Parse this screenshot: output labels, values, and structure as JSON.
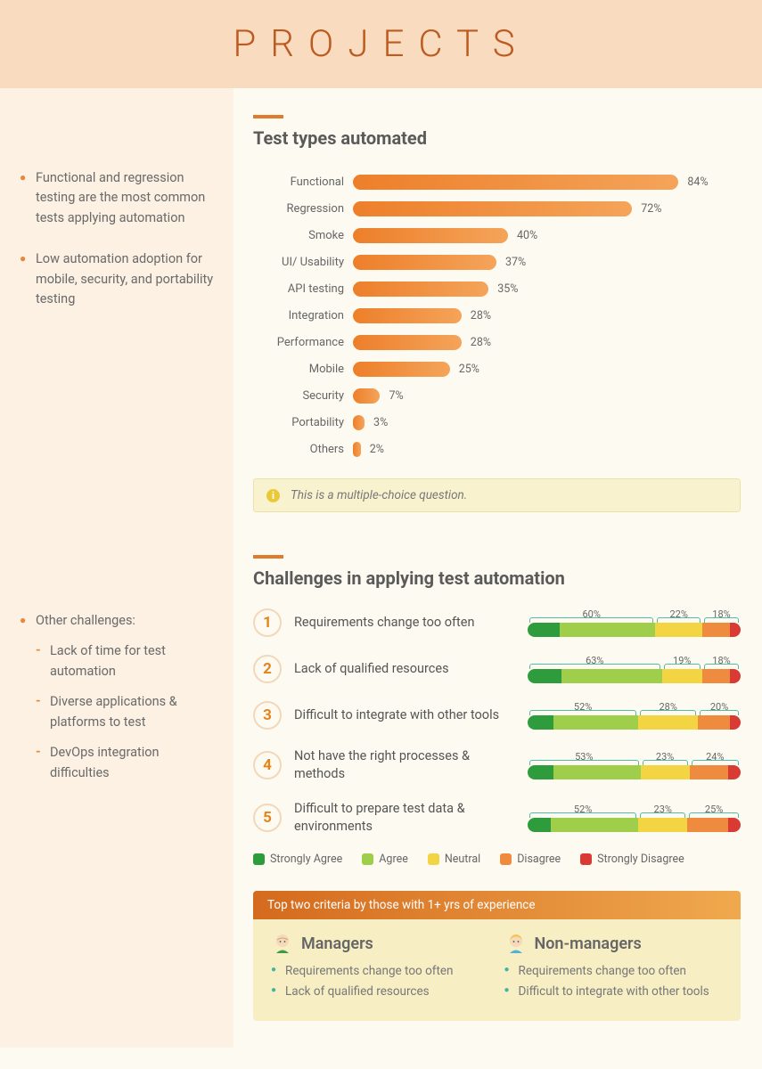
{
  "header": {
    "title": "PROJECTS"
  },
  "sidebar": {
    "block1": [
      "Functional and regression testing are the most common tests applying automation",
      "Low automation adoption for mobile, security, and portability testing"
    ],
    "block2_title": "Other challenges:",
    "block2_items": [
      "Lack of time for test automation",
      "Diverse applications & platforms to test",
      "DevOps integration difficulties"
    ]
  },
  "barChart": {
    "title": "Test types automated",
    "max": 100,
    "bar_color_from": "#ed7f2a",
    "bar_color_to": "#f4a45a",
    "text_color": "#666",
    "items": [
      {
        "label": "Functional",
        "value": 84
      },
      {
        "label": "Regression",
        "value": 72
      },
      {
        "label": "Smoke",
        "value": 40
      },
      {
        "label": "UI/ Usability",
        "value": 37
      },
      {
        "label": "API testing",
        "value": 35
      },
      {
        "label": "Integration",
        "value": 28
      },
      {
        "label": "Performance",
        "value": 28
      },
      {
        "label": "Mobile",
        "value": 25
      },
      {
        "label": "Security",
        "value": 7
      },
      {
        "label": "Portability",
        "value": 3
      },
      {
        "label": "Others",
        "value": 2
      }
    ],
    "notice": "This is a multiple-choice question."
  },
  "challenges": {
    "title": "Challenges in applying test automation",
    "colors": {
      "strongly_agree": "#2e9c3c",
      "agree": "#9fce4a",
      "neutral": "#f3d443",
      "disagree": "#ef8b3e",
      "strongly_disagree": "#d93a33"
    },
    "legend": [
      {
        "label": "Strongly Agree",
        "key": "strongly_agree"
      },
      {
        "label": "Agree",
        "key": "agree"
      },
      {
        "label": "Neutral",
        "key": "neutral"
      },
      {
        "label": "Disagree",
        "key": "disagree"
      },
      {
        "label": "Strongly Disagree",
        "key": "strongly_disagree"
      }
    ],
    "items": [
      {
        "num": "1",
        "label": "Requirements change too often",
        "groups": [
          60,
          22,
          18
        ],
        "segments": [
          15,
          45,
          22,
          13,
          5
        ]
      },
      {
        "num": "2",
        "label": "Lack of qualified resources",
        "groups": [
          63,
          19,
          18
        ],
        "segments": [
          16,
          47,
          19,
          13,
          5
        ]
      },
      {
        "num": "3",
        "label": "Difficult to integrate with other tools",
        "groups": [
          52,
          28,
          20
        ],
        "segments": [
          12,
          40,
          28,
          15,
          5
        ]
      },
      {
        "num": "4",
        "label": "Not have the right processes & methods",
        "groups": [
          53,
          23,
          24
        ],
        "segments": [
          12,
          41,
          23,
          18,
          6
        ]
      },
      {
        "num": "5",
        "label": "Difficult to prepare test data & environments",
        "groups": [
          52,
          23,
          25
        ],
        "segments": [
          11,
          41,
          23,
          19,
          6
        ]
      }
    ]
  },
  "criteria": {
    "header": "Top two criteria by those with 1+ yrs of experience",
    "cols": [
      {
        "title": "Managers",
        "items": [
          "Requirements change too often",
          "Lack of qualified resources"
        ]
      },
      {
        "title": "Non-managers",
        "items": [
          "Requirements change too often",
          "Difficult to integrate with other tools"
        ]
      }
    ]
  }
}
